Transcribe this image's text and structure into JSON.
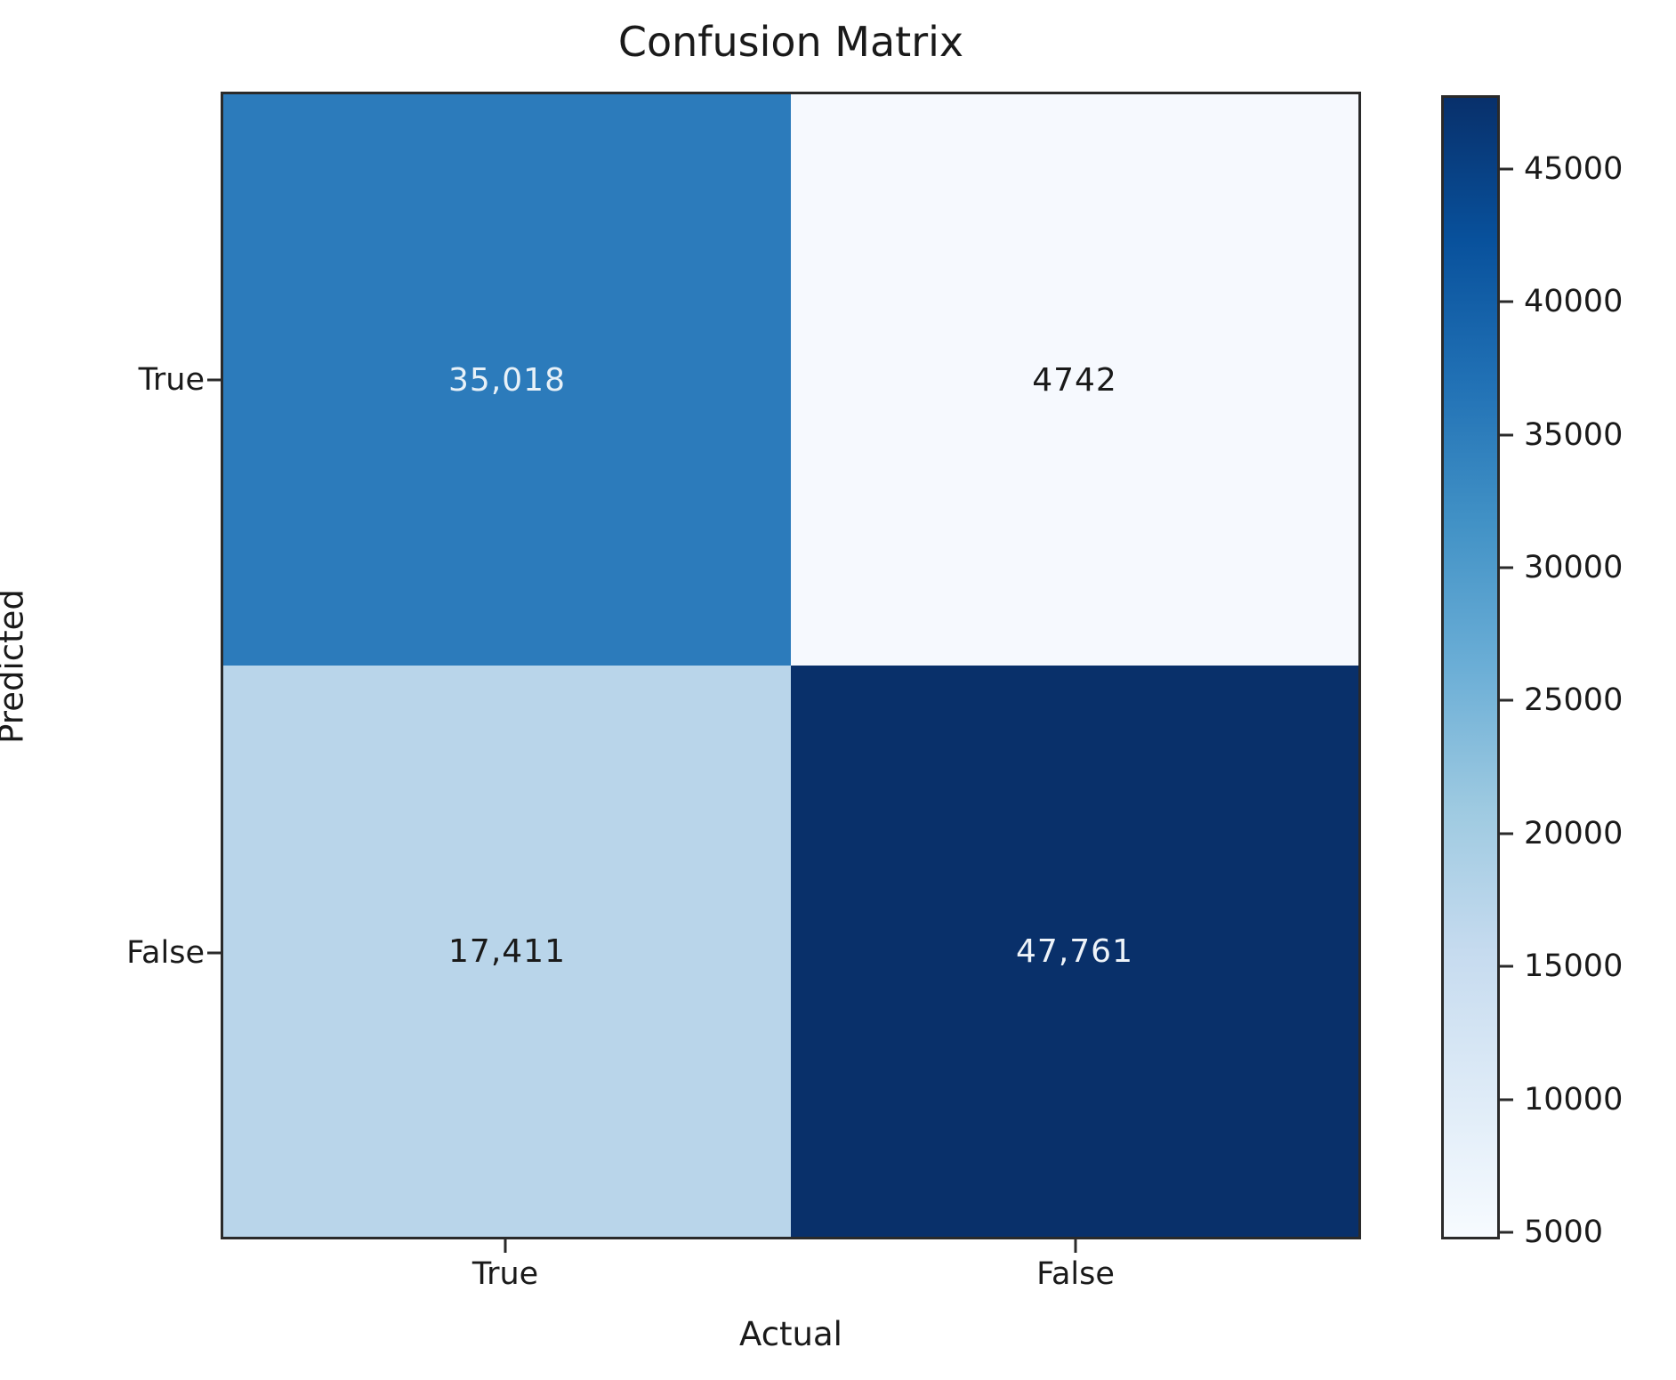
{
  "title": "Confusion Matrix",
  "axes": {
    "x_label": "Actual",
    "y_label": "Predicted",
    "x_ticks": [
      "True",
      "False"
    ],
    "y_ticks": [
      "True",
      "False"
    ]
  },
  "chart_data": {
    "type": "heatmap",
    "title": "Confusion Matrix",
    "xlabel": "Actual",
    "ylabel": "Predicted",
    "x_categories": [
      "True",
      "False"
    ],
    "y_categories": [
      "True",
      "False"
    ],
    "values": [
      [
        35018,
        4742
      ],
      [
        17411,
        47761
      ]
    ],
    "cell_labels": [
      [
        "35,018",
        "4742"
      ],
      [
        "17,411",
        "47,761"
      ]
    ],
    "cell_colors": [
      [
        "#2c7bbb",
        "#f6f9fe"
      ],
      [
        "#b9d5ea",
        "#09306a"
      ]
    ],
    "cell_text_colors": [
      [
        "#e8f1f8",
        "#1a1a1a"
      ],
      [
        "#1a1a1a",
        "#eef3f9"
      ]
    ],
    "colormap": "Blues",
    "colormap_stops_top_to_bottom": [
      "#08306b",
      "#08519c",
      "#2171b5",
      "#4292c6",
      "#6baed6",
      "#9ecae1",
      "#c6dbef",
      "#deebf7",
      "#f7fbff"
    ],
    "colorbar_ticks": [
      45000,
      40000,
      35000,
      30000,
      25000,
      20000,
      15000,
      10000,
      5000
    ],
    "colorbar_range": [
      4742,
      47761
    ],
    "grid": false,
    "legend_position": "right-colorbar"
  }
}
